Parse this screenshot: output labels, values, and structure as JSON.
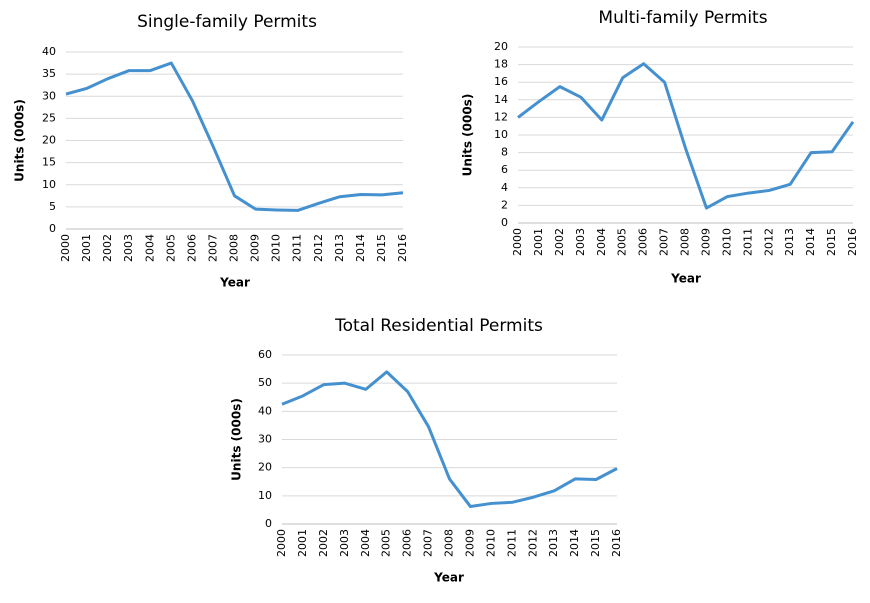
{
  "chart_data": [
    {
      "type": "line",
      "title": "Single-family Permits",
      "xlabel": "Year",
      "ylabel": "Units (000s)",
      "categories": [
        "2000",
        "2001",
        "2002",
        "2003",
        "2004",
        "2005",
        "2006",
        "2007",
        "2008",
        "2009",
        "2010",
        "2011",
        "2012",
        "2013",
        "2014",
        "2015",
        "2016"
      ],
      "values": [
        30.5,
        31.8,
        34,
        35.8,
        35.8,
        37.5,
        29,
        18.5,
        7.5,
        4.5,
        4.3,
        4.2,
        5.8,
        7.3,
        7.8,
        7.7,
        8.2
      ],
      "color": "#4590cf",
      "ylim": [
        0,
        40
      ],
      "yticks": [
        0,
        5,
        10,
        15,
        20,
        25,
        30,
        35,
        40
      ],
      "grid": true
    },
    {
      "type": "line",
      "title": "Multi-family Permits",
      "xlabel": "Year",
      "ylabel": "Units (000s)",
      "categories": [
        "2000",
        "2001",
        "2002",
        "2003",
        "2004",
        "2005",
        "2006",
        "2007",
        "2008",
        "2009",
        "2010",
        "2011",
        "2012",
        "2013",
        "2014",
        "2015",
        "2016"
      ],
      "values": [
        12,
        13.8,
        15.5,
        14.3,
        11.7,
        16.5,
        18.1,
        16,
        8.5,
        1.7,
        3,
        3.4,
        3.7,
        4.4,
        8,
        8.1,
        11.5
      ],
      "color": "#4590cf",
      "ylim": [
        0,
        20
      ],
      "yticks": [
        0,
        2,
        4,
        6,
        8,
        10,
        12,
        14,
        16,
        18,
        20
      ],
      "grid": true
    },
    {
      "type": "line",
      "title": "Total Residential Permits",
      "xlabel": "Year",
      "ylabel": "Units (000s)",
      "categories": [
        "2000",
        "2001",
        "2002",
        "2003",
        "2004",
        "2005",
        "2006",
        "2007",
        "2008",
        "2009",
        "2010",
        "2011",
        "2012",
        "2013",
        "2014",
        "2015",
        "2016"
      ],
      "values": [
        42.5,
        45.5,
        49.5,
        50,
        47.8,
        54,
        47,
        34.5,
        16,
        6.2,
        7.3,
        7.7,
        9.5,
        11.8,
        16,
        15.8,
        19.7
      ],
      "color": "#4590cf",
      "ylim": [
        0,
        60
      ],
      "yticks": [
        0,
        10,
        20,
        30,
        40,
        50,
        60
      ],
      "grid": true
    }
  ]
}
